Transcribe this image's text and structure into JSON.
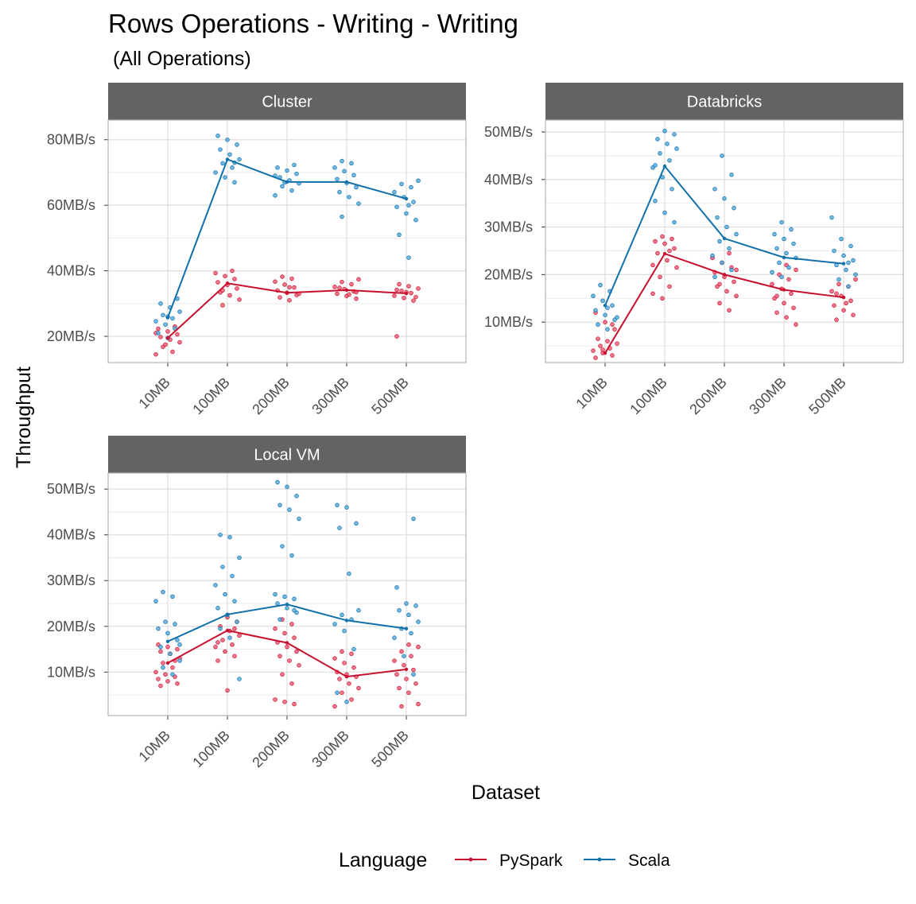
{
  "chart_data": {
    "type": "scatter",
    "title": "Rows Operations - Writing - Writing",
    "subtitle": "(All Operations)",
    "xlabel": "Dataset",
    "ylabel": "Throughput",
    "categories": [
      "10MB",
      "100MB",
      "200MB",
      "300MB",
      "500MB"
    ],
    "grid": true,
    "legend": {
      "title": "Language",
      "placement": "bottom",
      "entries": [
        {
          "name": "PySpark",
          "color": "#c8102e"
        },
        {
          "name": "Scala",
          "color": "#1170aa"
        }
      ]
    },
    "colors": {
      "PySpark": "#c8102e",
      "Scala": "#1170aa",
      "pyspark_point_fill": "#f0607a",
      "scala_point_fill": "#5aacdc",
      "strip": "#636363"
    },
    "panels": [
      {
        "name": "Cluster",
        "ylim": [
          12,
          86
        ],
        "yticks": [
          20,
          40,
          60,
          80
        ],
        "ytick_labels": [
          "20MB/s",
          "40MB/s",
          "60MB/s",
          "80MB/s"
        ],
        "series": [
          {
            "name": "PySpark",
            "mean": [
              19.5,
              36.2,
              33.3,
              34.1,
              33.1
            ],
            "points": [
              [
                14.5,
                15.3,
                16.8,
                18.2,
                19.0,
                19.8,
                20.6,
                21.5,
                22.3,
                23.0,
                17.5,
                21.0
              ],
              [
                29.5,
                31.2,
                32.5,
                33.4,
                34.6,
                35.7,
                36.5,
                37.5,
                38.4,
                39.3,
                40.0,
                34.0
              ],
              [
                31.0,
                31.9,
                32.6,
                33.3,
                34.0,
                34.9,
                35.8,
                36.7,
                37.6,
                38.2,
                33.0,
                35.0
              ],
              [
                31.5,
                32.3,
                33.0,
                33.7,
                34.4,
                35.1,
                35.9,
                36.6,
                37.4,
                32.8,
                34.8,
                33.5
              ],
              [
                20.0,
                30.9,
                31.7,
                32.4,
                33.2,
                33.9,
                34.6,
                35.3,
                35.9,
                32.0,
                33.5,
                34.2
              ]
            ]
          },
          {
            "name": "Scala",
            "mean": [
              25.7,
              74.0,
              67.1,
              67.1,
              62.0
            ],
            "points": [
              [
                19.5,
                21.0,
                22.4,
                23.6,
                24.6,
                25.5,
                26.5,
                27.5,
                28.8,
                30.0,
                31.5,
                26.0
              ],
              [
                67.0,
                68.5,
                70.0,
                71.5,
                72.8,
                74.0,
                75.5,
                77.0,
                78.5,
                80.0,
                81.2,
                73.0
              ],
              [
                63.0,
                64.5,
                65.8,
                66.7,
                67.6,
                68.5,
                69.6,
                70.6,
                71.5,
                72.3,
                67.0,
                69.0
              ],
              [
                56.5,
                60.5,
                62.5,
                64.0,
                65.5,
                66.8,
                68.0,
                69.2,
                70.4,
                71.5,
                72.8,
                73.5
              ],
              [
                44.0,
                51.0,
                55.5,
                57.5,
                59.5,
                61.0,
                62.5,
                64.0,
                65.5,
                66.5,
                67.5,
                60.0
              ]
            ]
          }
        ]
      },
      {
        "name": "Databricks",
        "ylim": [
          1.5,
          52.5
        ],
        "yticks": [
          10,
          20,
          30,
          40,
          50
        ],
        "ytick_labels": [
          "10MB/s",
          "20MB/s",
          "30MB/s",
          "40MB/s",
          "50MB/s"
        ],
        "series": [
          {
            "name": "PySpark",
            "mean": [
              3.5,
              24.4,
              20.0,
              16.8,
              15.2
            ],
            "points": [
              [
                2.5,
                3.0,
                3.5,
                4.0,
                4.5,
                5.0,
                5.5,
                6.0,
                6.5,
                8.5,
                10.0,
                12.0,
                9.5,
                4.2
              ],
              [
                15.0,
                16.0,
                17.5,
                19.5,
                21.5,
                23.0,
                24.5,
                25.5,
                26.5,
                27.0,
                27.5,
                28.0,
                22.0,
                25.0
              ],
              [
                12.5,
                14.0,
                15.5,
                16.5,
                17.5,
                18.5,
                19.5,
                20.5,
                21.5,
                22.5,
                23.5,
                24.5,
                18.0,
                21.0
              ],
              [
                9.5,
                11.0,
                12.0,
                13.0,
                14.0,
                15.0,
                16.0,
                17.0,
                18.0,
                19.0,
                20.0,
                21.0,
                22.0,
                15.5
              ],
              [
                10.5,
                11.5,
                12.5,
                13.5,
                14.5,
                15.5,
                16.5,
                17.5,
                18.0,
                19.0,
                14.0,
                16.0
              ]
            ]
          },
          {
            "name": "Scala",
            "mean": [
              13.5,
              42.8,
              27.6,
              23.6,
              22.3
            ],
            "points": [
              [
                8.5,
                9.5,
                10.5,
                11.5,
                12.5,
                13.5,
                14.5,
                15.5,
                16.5,
                17.8,
                11.0,
                13.0
              ],
              [
                31.0,
                33.0,
                35.5,
                38.0,
                40.5,
                42.5,
                44.0,
                45.5,
                46.5,
                47.5,
                48.5,
                49.5,
                50.2,
                43.0
              ],
              [
                19.5,
                21.0,
                22.5,
                24.0,
                25.5,
                27.0,
                28.5,
                30.0,
                32.0,
                34.0,
                36.0,
                38.0,
                41.0,
                45.0
              ],
              [
                19.5,
                20.5,
                21.5,
                22.5,
                23.5,
                24.5,
                25.5,
                26.5,
                27.5,
                28.5,
                29.5,
                31.0
              ],
              [
                17.5,
                19.0,
                20.0,
                21.0,
                22.0,
                23.0,
                24.0,
                25.0,
                26.0,
                27.5,
                32.0,
                22.5
              ]
            ]
          }
        ]
      },
      {
        "name": "Local VM",
        "ylim": [
          0.5,
          53.5
        ],
        "yticks": [
          10,
          20,
          30,
          40,
          50
        ],
        "ytick_labels": [
          "10MB/s",
          "20MB/s",
          "30MB/s",
          "40MB/s",
          "50MB/s"
        ],
        "series": [
          {
            "name": "PySpark",
            "mean": [
              12.0,
              19.1,
              16.4,
              9.0,
              10.6
            ],
            "points": [
              [
                7.0,
                7.5,
                8.0,
                8.5,
                9.0,
                9.5,
                10.0,
                11.0,
                12.0,
                13.0,
                14.0,
                14.5,
                15.0,
                15.5,
                16.0,
                12.5
              ],
              [
                6.0,
                12.5,
                13.5,
                14.5,
                15.5,
                16.0,
                17.0,
                18.0,
                19.0,
                20.0,
                21.0,
                22.0,
                16.5,
                19.5
              ],
              [
                3.0,
                3.5,
                4.0,
                7.5,
                9.5,
                11.5,
                12.5,
                13.5,
                14.5,
                15.5,
                16.5,
                17.5,
                18.5,
                19.5,
                20.5,
                21.5
              ],
              [
                2.5,
                4.0,
                5.5,
                6.5,
                7.5,
                8.5,
                9.0,
                9.5,
                10.0,
                11.0,
                12.0,
                13.0,
                14.0,
                14.5
              ],
              [
                2.5,
                3.0,
                5.5,
                6.5,
                7.5,
                8.5,
                9.5,
                10.5,
                11.5,
                12.5,
                13.5,
                14.5,
                15.5,
                16.0
              ]
            ]
          },
          {
            "name": "Scala",
            "mean": [
              16.7,
              22.6,
              24.8,
              21.3,
              19.5
            ],
            "points": [
              [
                9.5,
                11.0,
                12.5,
                14.0,
                15.5,
                17.0,
                18.5,
                19.5,
                20.5,
                21.0,
                25.5,
                26.5,
                27.5,
                16.0
              ],
              [
                8.5,
                17.5,
                19.5,
                21.0,
                22.5,
                24.0,
                25.5,
                27.0,
                29.0,
                31.0,
                33.0,
                35.0,
                39.5,
                40.0
              ],
              [
                21.5,
                23.0,
                24.0,
                25.0,
                26.0,
                26.5,
                27.0,
                35.5,
                37.5,
                43.5,
                45.5,
                46.5,
                48.5,
                50.5,
                51.5,
                23.5
              ],
              [
                3.5,
                5.5,
                15.0,
                19.0,
                20.5,
                21.5,
                22.5,
                23.5,
                31.5,
                41.5,
                42.5,
                46.0,
                46.5
              ],
              [
                9.5,
                13.5,
                17.5,
                18.5,
                19.5,
                21.0,
                22.5,
                23.5,
                24.5,
                25.0,
                28.5,
                43.5
              ]
            ]
          }
        ]
      }
    ]
  }
}
